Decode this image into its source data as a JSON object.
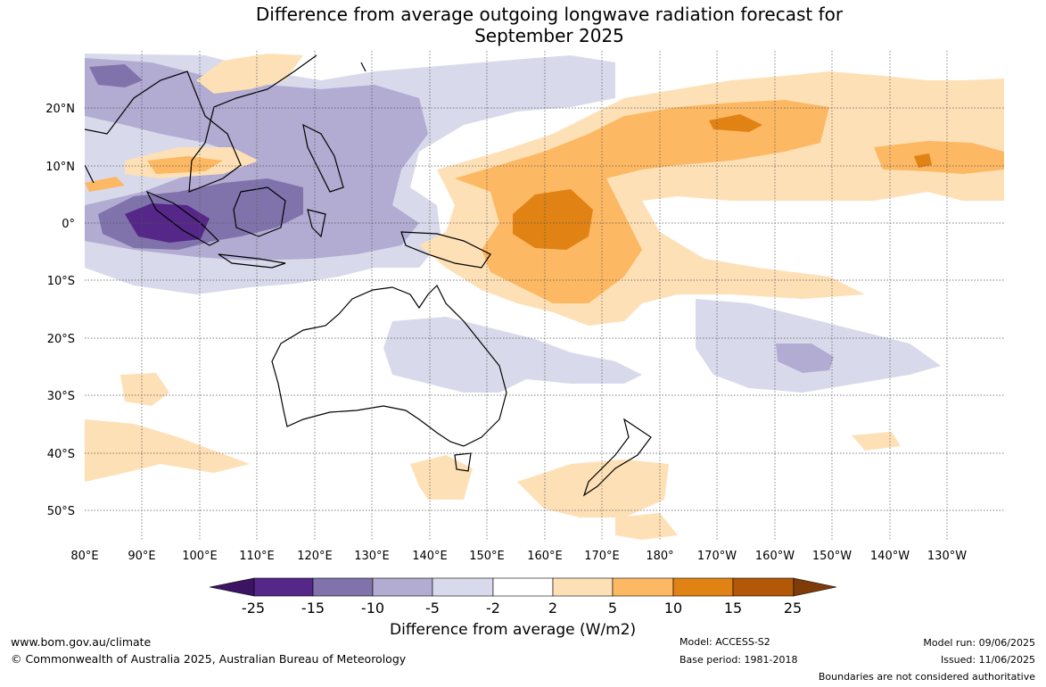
{
  "title_line1": "Difference from average outgoing longwave radiation forecast for",
  "title_line2": "September 2025",
  "lat_labels": [
    "20°N",
    "10°N",
    "0°",
    "10°S",
    "20°S",
    "30°S",
    "40°S",
    "50°S"
  ],
  "lon_labels": [
    "80°E",
    "90°E",
    "100°E",
    "110°E",
    "120°E",
    "130°E",
    "140°E",
    "150°E",
    "160°E",
    "170°E",
    "180°",
    "170°W",
    "160°W",
    "150°W",
    "140°W",
    "130°W"
  ],
  "colorbar": {
    "ticks": [
      "-25",
      "-15",
      "-10",
      "-5",
      "-2",
      "2",
      "5",
      "10",
      "15",
      "25"
    ],
    "colors": [
      "#3d1463",
      "#542788",
      "#8073ac",
      "#b2abd2",
      "#d8daeb",
      "#ffffff",
      "#fee0b6",
      "#fdb863",
      "#e08214",
      "#b35806",
      "#7f3b08"
    ],
    "label": "Difference from average (W/m2)"
  },
  "footer": {
    "website": "www.bom.gov.au/climate",
    "copyright": "© Commonwealth of Australia 2025, Australian Bureau of Meteorology",
    "model": "Model: ACCESS-S2",
    "base_period": "Base period: 1981-2018",
    "model_run": "Model run: 09/06/2025",
    "issued": "Issued: 11/06/2025",
    "disclaimer": "Boundaries are not considered authoritative"
  }
}
